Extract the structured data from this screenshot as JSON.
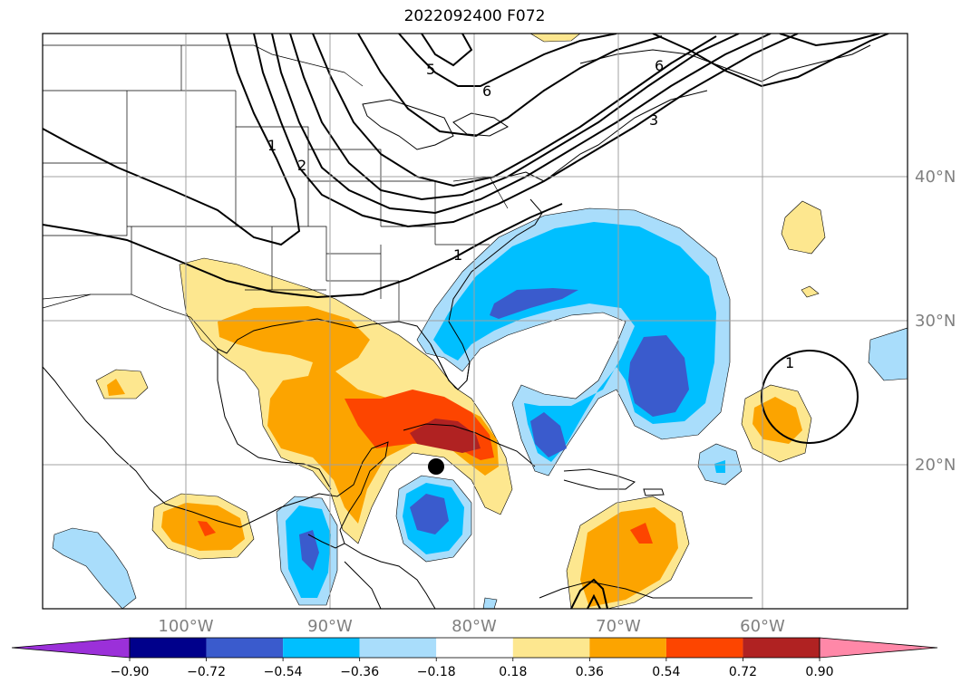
{
  "title": "2022092400 F072",
  "latitudes": [
    "40°N",
    "30°N",
    "20°N"
  ],
  "longitudes": [
    "100°W",
    "90°W",
    "80°W",
    "70°W",
    "60°W"
  ],
  "contour_labels": [
    "5",
    "6",
    "6",
    "1",
    "2",
    "3",
    "1",
    "1"
  ],
  "colorbar": {
    "ticks": [
      "−0.90",
      "−0.72",
      "−0.54",
      "−0.36",
      "−0.18",
      "0.18",
      "0.36",
      "0.54",
      "0.72",
      "0.90"
    ],
    "colors": [
      "#9b30d9",
      "#00008b",
      "#3a5bcd",
      "#00bfff",
      "#a9ddfb",
      "#ffffff",
      "#fde78f",
      "#fca400",
      "#fd4500",
      "#b02222",
      "#ff88a8"
    ]
  },
  "marker": "storm-center"
}
